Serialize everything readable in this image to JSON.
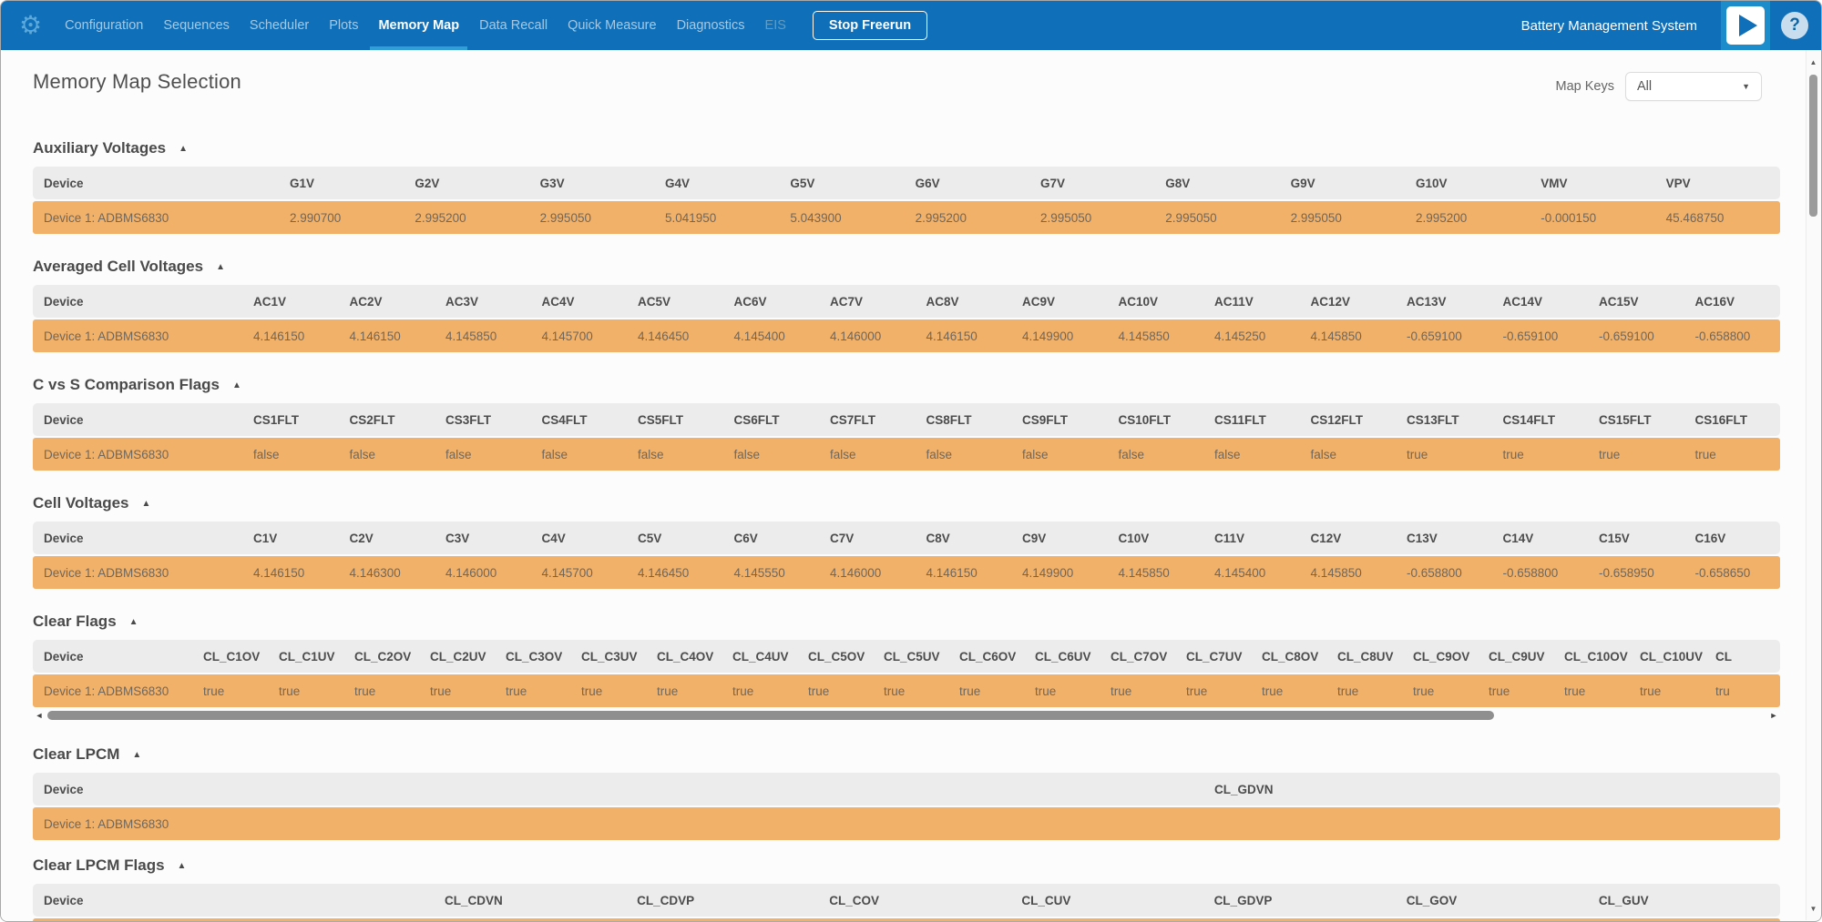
{
  "nav": {
    "items": [
      {
        "label": "Configuration",
        "state": "normal"
      },
      {
        "label": "Sequences",
        "state": "normal"
      },
      {
        "label": "Scheduler",
        "state": "normal"
      },
      {
        "label": "Plots",
        "state": "normal"
      },
      {
        "label": "Memory Map",
        "state": "active"
      },
      {
        "label": "Data Recall",
        "state": "normal"
      },
      {
        "label": "Quick Measure",
        "state": "normal"
      },
      {
        "label": "Diagnostics",
        "state": "normal"
      },
      {
        "label": "EIS",
        "state": "disabled"
      }
    ],
    "stop_button_label": "Stop Freerun",
    "brand": "Battery Management System"
  },
  "header": {
    "title": "Memory Map Selection",
    "map_keys_label": "Map Keys",
    "map_keys_value": "All"
  },
  "icons": {
    "gear": "⚙",
    "collapse": "▲",
    "dropdown": "▼",
    "help": "?",
    "scroll_up": "▲",
    "scroll_down": "▼",
    "scroll_left": "◄",
    "scroll_right": "►"
  },
  "colors": {
    "nav_bar": "#0f6fb8",
    "active_tab_underline": "#2f9fd6",
    "table_header_bg": "#ececec",
    "data_row_bg": "#f2b169"
  },
  "sections": [
    {
      "title": "Auxiliary Voltages",
      "device_header": "Device",
      "device_name": "Device 1: ADBMS6830",
      "columns": [
        "G1V",
        "G2V",
        "G3V",
        "G4V",
        "G5V",
        "G6V",
        "G7V",
        "G8V",
        "G9V",
        "G10V",
        "VMV",
        "VPV"
      ],
      "values": [
        "2.990700",
        "2.995200",
        "2.995050",
        "5.041950",
        "5.043900",
        "2.995200",
        "2.995050",
        "2.995050",
        "2.995050",
        "2.995200",
        "-0.000150",
        "45.468750"
      ],
      "h_scrollbar": false
    },
    {
      "title": "Averaged Cell Voltages",
      "device_header": "Device",
      "device_name": "Device 1: ADBMS6830",
      "columns": [
        "AC1V",
        "AC2V",
        "AC3V",
        "AC4V",
        "AC5V",
        "AC6V",
        "AC7V",
        "AC8V",
        "AC9V",
        "AC10V",
        "AC11V",
        "AC12V",
        "AC13V",
        "AC14V",
        "AC15V",
        "AC16V"
      ],
      "values": [
        "4.146150",
        "4.146150",
        "4.145850",
        "4.145700",
        "4.146450",
        "4.145400",
        "4.146000",
        "4.146150",
        "4.149900",
        "4.145850",
        "4.145250",
        "4.145850",
        "-0.659100",
        "-0.659100",
        "-0.659100",
        "-0.658800"
      ],
      "h_scrollbar": false
    },
    {
      "title": "C vs S Comparison Flags",
      "device_header": "Device",
      "device_name": "Device 1: ADBMS6830",
      "columns": [
        "CS1FLT",
        "CS2FLT",
        "CS3FLT",
        "CS4FLT",
        "CS5FLT",
        "CS6FLT",
        "CS7FLT",
        "CS8FLT",
        "CS9FLT",
        "CS10FLT",
        "CS11FLT",
        "CS12FLT",
        "CS13FLT",
        "CS14FLT",
        "CS15FLT",
        "CS16FLT"
      ],
      "values": [
        "false",
        "false",
        "false",
        "false",
        "false",
        "false",
        "false",
        "false",
        "false",
        "false",
        "false",
        "false",
        "true",
        "true",
        "true",
        "true"
      ],
      "h_scrollbar": false
    },
    {
      "title": "Cell Voltages",
      "device_header": "Device",
      "device_name": "Device 1: ADBMS6830",
      "columns": [
        "C1V",
        "C2V",
        "C3V",
        "C4V",
        "C5V",
        "C6V",
        "C7V",
        "C8V",
        "C9V",
        "C10V",
        "C11V",
        "C12V",
        "C13V",
        "C14V",
        "C15V",
        "C16V"
      ],
      "values": [
        "4.146150",
        "4.146300",
        "4.146000",
        "4.145700",
        "4.146450",
        "4.145550",
        "4.146000",
        "4.146150",
        "4.149900",
        "4.145850",
        "4.145400",
        "4.145850",
        "-0.658800",
        "-0.658800",
        "-0.658950",
        "-0.658650"
      ],
      "h_scrollbar": false
    },
    {
      "title": "Clear Flags",
      "device_header": "Device",
      "device_name": "Device 1: ADBMS6830",
      "columns": [
        "CL_C1OV",
        "CL_C1UV",
        "CL_C2OV",
        "CL_C2UV",
        "CL_C3OV",
        "CL_C3UV",
        "CL_C4OV",
        "CL_C4UV",
        "CL_C5OV",
        "CL_C5UV",
        "CL_C6OV",
        "CL_C6UV",
        "CL_C7OV",
        "CL_C7UV",
        "CL_C8OV",
        "CL_C8UV",
        "CL_C9OV",
        "CL_C9UV",
        "CL_C10OV",
        "CL_C10UV",
        "CL"
      ],
      "values": [
        "true",
        "true",
        "true",
        "true",
        "true",
        "true",
        "true",
        "true",
        "true",
        "true",
        "true",
        "true",
        "true",
        "true",
        "true",
        "true",
        "true",
        "true",
        "true",
        "true",
        "tru"
      ],
      "h_scrollbar": true
    },
    {
      "title": "Clear LPCM",
      "device_header": "Device",
      "device_name": "Device 1: ADBMS6830",
      "columns": [
        "CL_GDVN"
      ],
      "values": [
        ""
      ],
      "h_scrollbar": false
    },
    {
      "title": "Clear LPCM Flags",
      "device_header": "Device",
      "device_name": "Device 1: ADBMS6830",
      "columns": [
        "CL_CDVN",
        "CL_CDVP",
        "CL_COV",
        "CL_CUV",
        "CL_GDVP",
        "CL_GOV",
        "CL_GUV"
      ],
      "values": [
        "",
        "",
        "",
        "",
        "",
        "",
        ""
      ],
      "h_scrollbar": false
    }
  ]
}
